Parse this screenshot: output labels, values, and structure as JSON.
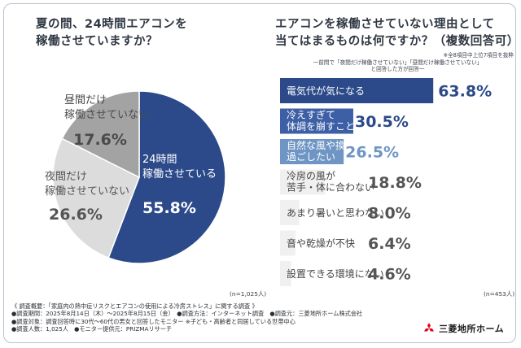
{
  "left": {
    "question_line1": "夏の間、24時間エアコンを",
    "question_line2": "稼働させていますか？",
    "n_label": "(n=1,025人)"
  },
  "right": {
    "question_line1": "エアコンを稼働させていない理由として",
    "question_line2": "当てはまるものは何ですか？（複数回答可）",
    "note_line1": "※全8項目中上位7項目を抜粋",
    "note_line2": "一前問で「夜間だけ稼働させていない」「昼間だけ稼働させていない」",
    "note_line3": "と回答した方が回答一",
    "n_label": "(n=453人)"
  },
  "chart_data": [
    {
      "type": "pie",
      "title": "夏の間、24時間エアコンを稼働させていますか？",
      "slices": [
        {
          "label_lines": [
            "24時間",
            "稼働させている"
          ],
          "value": 55.8,
          "display": "55.8%",
          "color": "#2c4a8a",
          "text_color": "#ffffff"
        },
        {
          "label_lines": [
            "夜間だけ",
            "稼働させていない"
          ],
          "value": 26.6,
          "display": "26.6%",
          "color": "#dcdcdc",
          "text_color": "#555555"
        },
        {
          "label_lines": [
            "昼間だけ",
            "稼働させていない"
          ],
          "value": 17.6,
          "display": "17.6%",
          "color": "#a3a3a3",
          "text_color": "#4a4a4a"
        }
      ]
    },
    {
      "type": "bar",
      "orientation": "horizontal",
      "title": "エアコンを稼働させていない理由として当てはまるものは何ですか？（複数回答可）",
      "xlim": [
        0,
        100
      ],
      "categories": [
        [
          "電気代が気になる"
        ],
        [
          "冷えすぎて",
          "体調を崩すことがある"
        ],
        [
          "自然な風や換気で",
          "過ごしたい"
        ],
        [
          "冷房の風が",
          "苦手・体に合わない"
        ],
        [
          "あまり暑いと思わない"
        ],
        [
          "音や乾燥が不快"
        ],
        [
          "設置できる環境にない"
        ]
      ],
      "values": [
        63.8,
        30.5,
        26.5,
        18.8,
        8.0,
        6.4,
        4.6
      ],
      "value_labels": [
        "63.8%",
        "30.5%",
        "26.5%",
        "18.8%",
        "8.0%",
        "6.4%",
        "4.6%"
      ],
      "bar_colors": [
        "#2c4a8a",
        "#3d5fa6",
        "#6f95c4",
        "#f0f0f0",
        "#f0f0f0",
        "#f0f0f0",
        "#f0f0f0"
      ],
      "value_colors": [
        "#2c4a8a",
        "#2c4a8a",
        "#6f95c4",
        "#555555",
        "#555555",
        "#555555",
        "#555555"
      ],
      "label_colors": [
        "#ffffff",
        "#ffffff",
        "#ffffff",
        "#444444",
        "#444444",
        "#444444",
        "#444444"
      ]
    }
  ],
  "footer": {
    "line1": "《 調査概要：「家庭内の熱中症リスクとエアコンの使用による冷房ストレス」に関する調査 》",
    "line2": "●調査期間：2025年8月14日（木）〜2025年8月15日（金）　●調査方法：インターネット調査　●調査元：三菱地所ホーム株式会社",
    "line3": "●調査対象：調査回答時に30代〜60代の男女と回答したモニター ※子ども・高齢者と同居している世帯中心",
    "line4": "●調査人数：1,025人　●モニター提供元：PRIZMAリサーチ"
  },
  "logo": {
    "text": "三菱地所ホーム",
    "icon": "mitsubishi-three-diamonds-icon",
    "color": "#e60012"
  }
}
